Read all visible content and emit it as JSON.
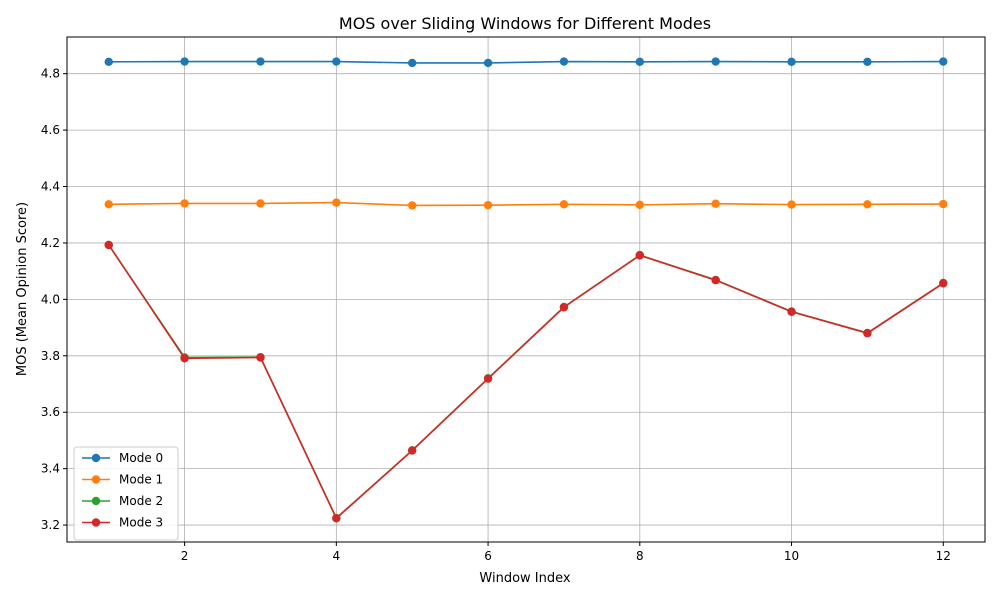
{
  "chart_data": {
    "type": "line",
    "title": "MOS over Sliding Windows for Different Modes",
    "xlabel": "Window Index",
    "ylabel": "MOS (Mean Opinion Score)",
    "xlim": [
      0.45,
      12.55
    ],
    "ylim": [
      3.14,
      4.93
    ],
    "xticks": [
      2,
      4,
      6,
      8,
      10,
      12
    ],
    "yticks": [
      3.2,
      3.4,
      3.6,
      3.8,
      4.0,
      4.2,
      4.4,
      4.6,
      4.8
    ],
    "grid": true,
    "legend_position": "lower-left",
    "x": [
      1,
      2,
      3,
      4,
      5,
      6,
      7,
      8,
      9,
      10,
      11,
      12
    ],
    "series": [
      {
        "name": "Mode 0",
        "color": "#1f77b4",
        "values": [
          4.842,
          4.843,
          4.843,
          4.843,
          4.838,
          4.838,
          4.843,
          4.842,
          4.843,
          4.842,
          4.842,
          4.843
        ]
      },
      {
        "name": "Mode 1",
        "color": "#ff7f0e",
        "values": [
          4.337,
          4.34,
          4.34,
          4.343,
          4.333,
          4.334,
          4.337,
          4.335,
          4.339,
          4.336,
          4.337,
          4.338
        ]
      },
      {
        "name": "Mode 2",
        "color": "#2ca02c",
        "values": [
          4.193,
          3.794,
          3.795,
          3.225,
          3.465,
          3.72,
          3.973,
          4.157,
          4.069,
          3.957,
          3.881,
          4.058
        ]
      },
      {
        "name": "Mode 3",
        "color": "#d62728",
        "values": [
          4.193,
          3.791,
          3.794,
          3.224,
          3.464,
          3.719,
          3.972,
          4.156,
          4.068,
          3.956,
          3.88,
          4.057
        ]
      }
    ]
  }
}
